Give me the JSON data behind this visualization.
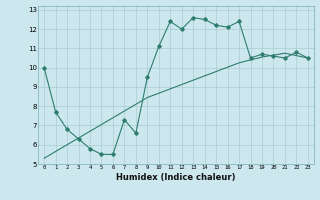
{
  "title": "",
  "xlabel": "Humidex (Indice chaleur)",
  "xlim": [
    -0.5,
    23.5
  ],
  "ylim": [
    5,
    13.2
  ],
  "yticks": [
    5,
    6,
    7,
    8,
    9,
    10,
    11,
    12,
    13
  ],
  "xticks": [
    0,
    1,
    2,
    3,
    4,
    5,
    6,
    7,
    8,
    9,
    10,
    11,
    12,
    13,
    14,
    15,
    16,
    17,
    18,
    19,
    20,
    21,
    22,
    23
  ],
  "xtick_labels": [
    "0",
    "1",
    "2",
    "3",
    "4",
    "5",
    "6",
    "7",
    "8",
    "9",
    "10",
    "11",
    "12",
    "13",
    "14",
    "15",
    "16",
    "17",
    "18",
    "19",
    "20",
    "21",
    "22",
    "23"
  ],
  "line_color": "#2e7d6e",
  "bg_color": "#cce8ee",
  "grid_color": "#aaccd4",
  "series1_x": [
    0,
    1,
    2,
    3,
    4,
    5,
    6,
    7,
    8,
    9,
    10,
    11,
    12,
    13,
    14,
    15,
    16,
    17,
    18,
    19,
    20,
    21,
    22,
    23
  ],
  "series1_y": [
    10.0,
    7.7,
    6.8,
    6.3,
    5.8,
    5.5,
    5.5,
    7.3,
    6.6,
    9.5,
    11.1,
    12.4,
    12.0,
    12.6,
    12.5,
    12.2,
    12.1,
    12.4,
    10.5,
    10.7,
    10.6,
    10.5,
    10.8,
    10.5
  ],
  "series2_x": [
    0,
    1,
    3,
    5,
    7,
    9,
    11,
    13,
    15,
    17,
    19,
    21,
    23
  ],
  "series2_y": [
    5.3,
    5.65,
    6.35,
    7.05,
    7.75,
    8.45,
    8.9,
    9.35,
    9.8,
    10.25,
    10.55,
    10.75,
    10.5
  ]
}
